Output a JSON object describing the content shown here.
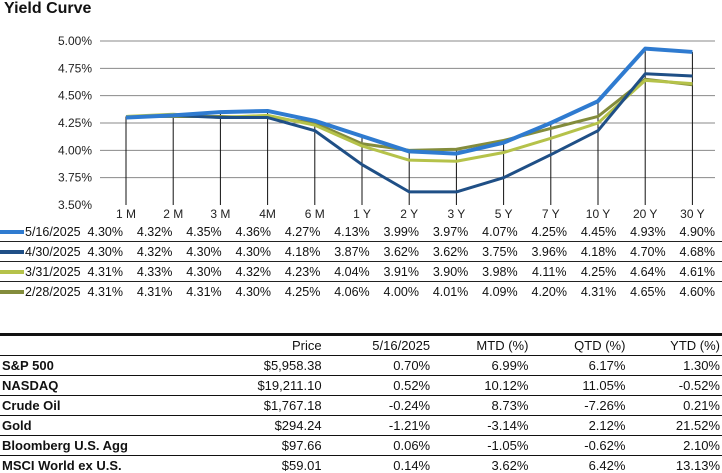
{
  "chart_data": {
    "type": "line",
    "title": "Yield Curve",
    "categories": [
      "1 M",
      "2 M",
      "3 M",
      "4M",
      "6 M",
      "1 Y",
      "2 Y",
      "3 Y",
      "5 Y",
      "7 Y",
      "10 Y",
      "20 Y",
      "30 Y"
    ],
    "yticks": [
      "5.00%",
      "4.75%",
      "4.50%",
      "4.25%",
      "4.00%",
      "3.75%",
      "3.50%"
    ],
    "ylim": [
      3.5,
      5.0
    ],
    "grid": true,
    "series": [
      {
        "name": "5/16/2025",
        "color": "#2f7bd0",
        "values": [
          4.3,
          4.32,
          4.35,
          4.36,
          4.27,
          4.13,
          3.99,
          3.97,
          4.07,
          4.25,
          4.45,
          4.93,
          4.9
        ],
        "labels": [
          "4.30%",
          "4.32%",
          "4.35%",
          "4.36%",
          "4.27%",
          "4.13%",
          "3.99%",
          "3.97%",
          "4.07%",
          "4.25%",
          "4.45%",
          "4.93%",
          "4.90%"
        ]
      },
      {
        "name": "4/30/2025",
        "color": "#1f4f86",
        "values": [
          4.3,
          4.32,
          4.3,
          4.3,
          4.18,
          3.87,
          3.62,
          3.62,
          3.75,
          3.96,
          4.18,
          4.7,
          4.68
        ],
        "labels": [
          "4.30%",
          "4.32%",
          "4.30%",
          "4.30%",
          "4.18%",
          "3.87%",
          "3.62%",
          "3.62%",
          "3.75%",
          "3.96%",
          "4.18%",
          "4.70%",
          "4.68%"
        ]
      },
      {
        "name": "3/31/2025",
        "color": "#b5c24a",
        "values": [
          4.31,
          4.33,
          4.3,
          4.32,
          4.23,
          4.04,
          3.91,
          3.9,
          3.98,
          4.11,
          4.25,
          4.64,
          4.61
        ],
        "labels": [
          "4.31%",
          "4.33%",
          "4.30%",
          "4.32%",
          "4.23%",
          "4.04%",
          "3.91%",
          "3.90%",
          "3.98%",
          "4.11%",
          "4.25%",
          "4.64%",
          "4.61%"
        ]
      },
      {
        "name": "2/28/2025",
        "color": "#838c3c",
        "values": [
          4.31,
          4.31,
          4.31,
          4.3,
          4.25,
          4.06,
          4.0,
          4.01,
          4.09,
          4.2,
          4.31,
          4.65,
          4.6
        ],
        "labels": [
          "4.31%",
          "4.31%",
          "4.31%",
          "4.30%",
          "4.25%",
          "4.06%",
          "4.00%",
          "4.01%",
          "4.09%",
          "4.20%",
          "4.31%",
          "4.65%",
          "4.60%"
        ]
      }
    ]
  },
  "performance": {
    "headers": [
      "",
      "Price",
      "5/16/2025",
      "MTD (%)",
      "QTD (%)",
      "YTD (%)"
    ],
    "rows": [
      [
        "S&P 500",
        "$5,958.38",
        "0.70%",
        "6.99%",
        "6.17%",
        "1.30%"
      ],
      [
        "NASDAQ",
        "$19,211.10",
        "0.52%",
        "10.12%",
        "11.05%",
        "-0.52%"
      ],
      [
        "Crude Oil",
        "$1,767.18",
        "-0.24%",
        "8.73%",
        "-7.26%",
        "0.21%"
      ],
      [
        "Gold",
        "$294.24",
        "-1.21%",
        "-3.14%",
        "2.12%",
        "21.52%"
      ],
      [
        "Bloomberg U.S. Agg",
        "$97.66",
        "0.06%",
        "-1.05%",
        "-0.62%",
        "2.10%"
      ],
      [
        "MSCI World ex U.S.",
        "$59.01",
        "0.14%",
        "3.62%",
        "6.42%",
        "13.13%"
      ]
    ]
  }
}
